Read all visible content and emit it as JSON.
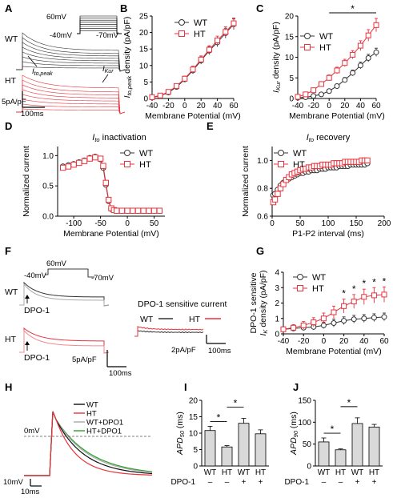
{
  "colors": {
    "WT": "#333333",
    "HT": "#e8323c",
    "grey": "#a8a8a8",
    "green": "#2ca02c"
  },
  "panels": {
    "A": {
      "label": "A",
      "wt": "WT",
      "ht": "HT",
      "protocol": [
        "60mV",
        "-40mV",
        "-70mV"
      ],
      "ito_peak_main": "I",
      "ito_peak_sub": "to,peak",
      "ikur_main": "I",
      "ikur_sub": "Kur",
      "scale_y": "5pA/pF",
      "scale_x": "100ms"
    },
    "B": {
      "label": "B"
    },
    "C": {
      "label": "C"
    },
    "D": {
      "label": "D"
    },
    "E": {
      "label": "E"
    },
    "F": {
      "label": "F",
      "wt": "WT",
      "ht": "HT",
      "protocol": [
        "60mV",
        "-40mV",
        "-70mV"
      ],
      "arrow_label": "DPO-1",
      "sensitive_title": "DPO-1 sensitive current",
      "scale_y": "5pA/pF",
      "scale_x": "100ms",
      "sens_scale_y": "2pA/pF",
      "sens_scale_x": "100ms"
    },
    "G": {
      "label": "G"
    },
    "H": {
      "label": "H",
      "legend": [
        "WT",
        "HT",
        "WT+DPO1",
        "HT+DPO1"
      ],
      "zero": "0mV",
      "scale_y": "10mV",
      "scale_x": "10ms"
    },
    "I": {
      "label": "I"
    },
    "J": {
      "label": "J"
    }
  },
  "chart_data": [
    {
      "panel": "B",
      "type": "line",
      "xlabel": "Membrane Potential (mV)",
      "ylabel_main": "I",
      "ylabel_sub": "to,peak",
      "ylabel_rest": " density (pA/pF)",
      "xlim": [
        -40,
        60
      ],
      "ylim": [
        0,
        25
      ],
      "xticks": [
        "-40",
        "-20",
        "0",
        "20",
        "40",
        "60"
      ],
      "yticks": [
        "0",
        "5",
        "10",
        "15",
        "20",
        "25"
      ],
      "x": [
        -40,
        -30,
        -20,
        -10,
        0,
        10,
        20,
        30,
        40,
        50,
        60
      ],
      "series": [
        {
          "name": "WT",
          "values": [
            0.3,
            0.8,
            1.8,
            3.5,
            5.8,
            8.5,
            11.5,
            14.5,
            17.0,
            19.8,
            22.5
          ],
          "err": [
            0.3,
            0.4,
            0.5,
            0.6,
            0.8,
            1.0,
            1.1,
            1.2,
            1.3,
            1.5,
            1.6
          ]
        },
        {
          "name": "HT",
          "values": [
            0.4,
            0.9,
            2.0,
            3.8,
            6.0,
            8.8,
            11.8,
            14.8,
            17.6,
            20.2,
            22.8
          ],
          "err": [
            0.3,
            0.4,
            0.5,
            0.6,
            0.8,
            1.0,
            1.1,
            1.2,
            1.3,
            1.5,
            1.6
          ]
        }
      ],
      "legend_position": "top-left"
    },
    {
      "panel": "C",
      "type": "line",
      "xlabel": "Membrane Potential (mV)",
      "ylabel_main": "I",
      "ylabel_sub": "Kur",
      "ylabel_rest": " density (pA/pF)",
      "xlim": [
        -40,
        60
      ],
      "ylim": [
        0,
        20
      ],
      "xticks": [
        "-40",
        "-20",
        "0",
        "20",
        "40",
        "60"
      ],
      "yticks": [
        "0",
        "5",
        "10",
        "15",
        "20"
      ],
      "x": [
        -40,
        -30,
        -20,
        -10,
        0,
        10,
        20,
        30,
        40,
        50,
        60
      ],
      "series": [
        {
          "name": "WT",
          "values": [
            0.2,
            0.3,
            0.6,
            1.0,
            1.8,
            3.0,
            4.5,
            6.2,
            8.0,
            9.8,
            11.2
          ],
          "err": [
            0.2,
            0.2,
            0.3,
            0.3,
            0.4,
            0.5,
            0.6,
            0.7,
            0.8,
            0.9,
            1.0
          ]
        },
        {
          "name": "HT",
          "values": [
            0.4,
            1.0,
            2.0,
            3.5,
            5.0,
            6.8,
            8.6,
            10.6,
            12.8,
            15.3,
            17.8
          ],
          "err": [
            0.3,
            0.4,
            0.5,
            0.6,
            0.7,
            0.8,
            0.9,
            1.0,
            1.2,
            1.4,
            1.6
          ]
        }
      ],
      "annotation": "*",
      "annotation_range": [
        0,
        60
      ],
      "legend_position": "top-left"
    },
    {
      "panel": "D",
      "type": "line",
      "title_main": "I",
      "title_sub": "to",
      "title_rest": "  inactivation",
      "xlabel": "Membrane Potential (mV)",
      "ylabel": "Normalized current",
      "xlim": [
        -130,
        70
      ],
      "ylim": [
        0,
        1.15
      ],
      "xticks": [
        "-100",
        "-50",
        "0",
        "50"
      ],
      "yticks": [
        "0.0",
        "0.5",
        "1.0"
      ],
      "x": [
        -120,
        -110,
        -100,
        -90,
        -80,
        -70,
        -60,
        -50,
        -45,
        -40,
        -35,
        -30,
        -25,
        -20,
        -10,
        0,
        10,
        20,
        30,
        40,
        50,
        60
      ],
      "series": [
        {
          "name": "WT",
          "values": [
            0.82,
            0.84,
            0.86,
            0.89,
            0.92,
            0.96,
            0.98,
            0.94,
            0.8,
            0.52,
            0.25,
            0.12,
            0.1,
            0.09,
            0.09,
            0.09,
            0.09,
            0.09,
            0.09,
            0.09,
            0.09,
            0.09
          ]
        },
        {
          "name": "HT",
          "values": [
            0.8,
            0.82,
            0.85,
            0.88,
            0.91,
            0.95,
            0.97,
            0.95,
            0.83,
            0.55,
            0.27,
            0.13,
            0.1,
            0.09,
            0.09,
            0.09,
            0.09,
            0.09,
            0.09,
            0.09,
            0.09,
            0.09
          ]
        }
      ],
      "legend_position": "top-right"
    },
    {
      "panel": "E",
      "type": "line",
      "title_main": "I",
      "title_sub": "to",
      "title_rest": "  recovery",
      "xlabel": "P1-P2 interval (ms)",
      "ylabel": "Normalized current",
      "xlim": [
        0,
        200
      ],
      "ylim": [
        0.6,
        1.1
      ],
      "xticks": [
        "0",
        "50",
        "100",
        "150",
        "200"
      ],
      "yticks": [
        "0.6",
        "0.8",
        "1.0"
      ],
      "x": [
        2,
        5,
        10,
        15,
        20,
        25,
        30,
        35,
        40,
        45,
        50,
        55,
        60,
        65,
        70,
        75,
        80,
        85,
        90,
        95,
        100,
        105,
        110,
        115,
        120,
        125,
        130,
        135,
        140,
        145,
        150,
        155,
        160,
        165,
        170
      ],
      "series": [
        {
          "name": "WT",
          "values": [
            0.75,
            0.76,
            0.79,
            0.82,
            0.84,
            0.86,
            0.87,
            0.88,
            0.89,
            0.9,
            0.91,
            0.91,
            0.92,
            0.92,
            0.93,
            0.93,
            0.93,
            0.94,
            0.94,
            0.94,
            0.95,
            0.95,
            0.95,
            0.95,
            0.96,
            0.96,
            0.96,
            0.96,
            0.97,
            0.97,
            0.97,
            0.97,
            0.97,
            0.97,
            0.98
          ]
        },
        {
          "name": "HT",
          "values": [
            0.7,
            0.72,
            0.76,
            0.8,
            0.83,
            0.86,
            0.88,
            0.9,
            0.91,
            0.92,
            0.93,
            0.94,
            0.94,
            0.95,
            0.95,
            0.96,
            0.96,
            0.96,
            0.97,
            0.97,
            0.97,
            0.97,
            0.98,
            0.98,
            0.98,
            0.98,
            0.99,
            0.99,
            0.99,
            0.99,
            0.99,
            0.99,
            1.0,
            1.0,
            1.0
          ]
        }
      ],
      "legend_position": "top-left"
    },
    {
      "panel": "G",
      "type": "line",
      "xlabel": "Membrane Potential (mV)",
      "ylabel_line1": "DPO-1 sensitive",
      "ylabel_main": "I",
      "ylabel_sub": "K",
      "ylabel_rest": " density (pA/pF)",
      "xlim": [
        -40,
        60
      ],
      "ylim": [
        0,
        4
      ],
      "xticks": [
        "-40",
        "-20",
        "0",
        "20",
        "40",
        "60"
      ],
      "yticks": [
        "0",
        "1",
        "2",
        "3",
        "4"
      ],
      "x": [
        -40,
        -30,
        -20,
        -10,
        0,
        10,
        20,
        30,
        40,
        50,
        60
      ],
      "series": [
        {
          "name": "WT",
          "values": [
            0.3,
            0.35,
            0.4,
            0.45,
            0.55,
            0.7,
            0.85,
            0.95,
            1.0,
            1.05,
            1.1
          ],
          "err": [
            0.15,
            0.15,
            0.15,
            0.2,
            0.2,
            0.25,
            0.25,
            0.25,
            0.25,
            0.25,
            0.25
          ]
        },
        {
          "name": "HT",
          "values": [
            0.3,
            0.4,
            0.55,
            0.75,
            1.0,
            1.4,
            1.8,
            2.1,
            2.4,
            2.5,
            2.55
          ],
          "err": [
            0.15,
            0.2,
            0.25,
            0.3,
            0.35,
            0.4,
            0.45,
            0.45,
            0.5,
            0.5,
            0.5
          ]
        }
      ],
      "stars_at_x": [
        20,
        30,
        40,
        50,
        60
      ],
      "star": "*",
      "legend_position": "top-left"
    },
    {
      "panel": "I",
      "type": "bar",
      "ylabel_main": "APD",
      "ylabel_sub": "50",
      "ylabel_rest": " (ms)",
      "ylim": [
        0,
        20
      ],
      "yticks": [
        "0",
        "5",
        "10",
        "15",
        "20"
      ],
      "categories": [
        "WT",
        "HT",
        "WT",
        "HT"
      ],
      "dpo_label": "DPO-1",
      "dpo": [
        "–",
        "–",
        "+",
        "+"
      ],
      "values": [
        10.8,
        5.8,
        13.0,
        9.8
      ],
      "err": [
        1.3,
        0.4,
        1.5,
        1.2
      ],
      "sig": [
        {
          "from": 0,
          "to": 1,
          "label": "*"
        },
        {
          "from": 1,
          "to": 2,
          "label": "*"
        }
      ]
    },
    {
      "panel": "J",
      "type": "bar",
      "ylabel_main": "APD",
      "ylabel_sub": "90",
      "ylabel_rest": " (ms)",
      "ylim": [
        0,
        150
      ],
      "yticks": [
        "0",
        "50",
        "100",
        "150"
      ],
      "categories": [
        "WT",
        "HT",
        "WT",
        "HT"
      ],
      "dpo_label": "DPO-1",
      "dpo": [
        "–",
        "–",
        "+",
        "+"
      ],
      "values": [
        55,
        37,
        97,
        89
      ],
      "err": [
        9,
        2,
        13,
        6
      ],
      "sig": [
        {
          "from": 0,
          "to": 1,
          "label": "*"
        },
        {
          "from": 1,
          "to": 2,
          "label": "*"
        }
      ]
    }
  ]
}
